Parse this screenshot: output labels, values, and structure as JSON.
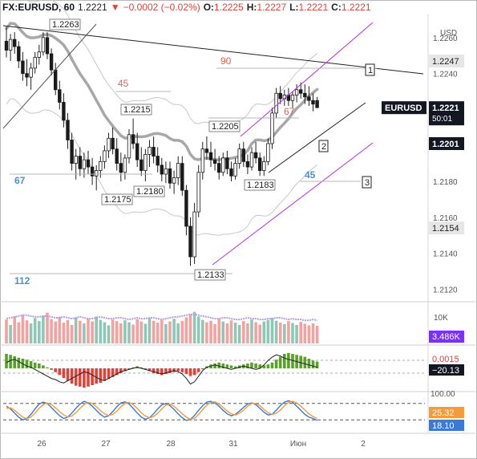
{
  "header": {
    "symbol": "FX:EURUSD, 60",
    "last": "1.2221",
    "change_icon": "triangle-down-icon",
    "change": "−0.0002 (−0.02%)",
    "o_label": "O:",
    "o": "1.2225",
    "h_label": "H:",
    "h": "1.2227",
    "l_label": "L:",
    "l": "1.2221",
    "c_label": "C:",
    "c": "1.2221"
  },
  "colors": {
    "up": "#5aa02c",
    "down": "#e0433a",
    "wick": "#222222",
    "channel": "#b92ee6",
    "ma": "#9e9e9e",
    "blue_label": "#4a90d9",
    "red_label": "#e0644f"
  },
  "chart_data": [
    {
      "type": "candlestick",
      "price_axis": {
        "unit": "USD",
        "ticks": [
          "1.2260",
          "1.2240",
          "1.2220",
          "1.2200",
          "1.2180",
          "1.2160",
          "1.2140",
          "1.2120"
        ],
        "ylim": [
          1.2113,
          1.2272
        ]
      },
      "time_axis": [
        "26",
        "27",
        "28",
        "31",
        "Июн",
        "2"
      ],
      "price_badges": [
        {
          "text": "1.2247",
          "value": 1.2247
        },
        {
          "text": "1.2221",
          "value": 1.2221,
          "symbol": "EURUSD",
          "countdown": "50:01"
        },
        {
          "text": "1.2201",
          "value": 1.2201
        },
        {
          "text": "1.2154",
          "value": 1.2154
        }
      ],
      "candles": [
        [
          1.2258,
          1.2266,
          1.2249,
          1.2253
        ],
        [
          1.2253,
          1.2262,
          1.2247,
          1.2259
        ],
        [
          1.2259,
          1.2263,
          1.2251,
          1.2255
        ],
        [
          1.2255,
          1.2258,
          1.2243,
          1.2247
        ],
        [
          1.2247,
          1.2252,
          1.2236,
          1.224
        ],
        [
          1.224,
          1.2248,
          1.2233,
          1.2238
        ],
        [
          1.2238,
          1.2246,
          1.2231,
          1.2243
        ],
        [
          1.2243,
          1.2252,
          1.224,
          1.2249
        ],
        [
          1.2249,
          1.2256,
          1.2245,
          1.2252
        ],
        [
          1.2252,
          1.2263,
          1.225,
          1.226
        ],
        [
          1.226,
          1.2263,
          1.2248,
          1.2251
        ],
        [
          1.2251,
          1.2254,
          1.2239,
          1.2242
        ],
        [
          1.2242,
          1.2246,
          1.2228,
          1.2231
        ],
        [
          1.2231,
          1.2236,
          1.222,
          1.2224
        ],
        [
          1.2224,
          1.2229,
          1.221,
          1.2214
        ],
        [
          1.2214,
          1.2218,
          1.2198,
          1.2203
        ],
        [
          1.2203,
          1.2207,
          1.2186,
          1.219
        ],
        [
          1.219,
          1.2198,
          1.2181,
          1.2194
        ],
        [
          1.2194,
          1.2199,
          1.2183,
          1.2187
        ],
        [
          1.2187,
          1.2196,
          1.2182,
          1.2192
        ],
        [
          1.2192,
          1.2197,
          1.2184,
          1.2188
        ],
        [
          1.2188,
          1.2193,
          1.2178,
          1.2183
        ],
        [
          1.2183,
          1.2189,
          1.2175,
          1.2186
        ],
        [
          1.2186,
          1.2194,
          1.2182,
          1.2191
        ],
        [
          1.2191,
          1.22,
          1.2187,
          1.2197
        ],
        [
          1.2197,
          1.2207,
          1.2193,
          1.2204
        ],
        [
          1.2204,
          1.221,
          1.2195,
          1.2198
        ],
        [
          1.2198,
          1.2204,
          1.2186,
          1.219
        ],
        [
          1.219,
          1.2196,
          1.218,
          1.2185
        ],
        [
          1.2185,
          1.2195,
          1.2181,
          1.2193
        ],
        [
          1.2193,
          1.2209,
          1.219,
          1.2206
        ],
        [
          1.2206,
          1.2215,
          1.2198,
          1.2201
        ],
        [
          1.2201,
          1.2207,
          1.2188,
          1.2192
        ],
        [
          1.2192,
          1.2199,
          1.2183,
          1.2186
        ],
        [
          1.2186,
          1.2198,
          1.218,
          1.2195
        ],
        [
          1.2195,
          1.2203,
          1.2188,
          1.2199
        ],
        [
          1.2199,
          1.2205,
          1.219,
          1.2194
        ],
        [
          1.2194,
          1.2199,
          1.2185,
          1.2189
        ],
        [
          1.2189,
          1.2193,
          1.218,
          1.2184
        ],
        [
          1.2184,
          1.2191,
          1.2179,
          1.2187
        ],
        [
          1.2187,
          1.2191,
          1.2176,
          1.2179
        ],
        [
          1.2179,
          1.2186,
          1.2173,
          1.2182
        ],
        [
          1.2182,
          1.2194,
          1.2178,
          1.219
        ],
        [
          1.219,
          1.2194,
          1.2172,
          1.2175
        ],
        [
          1.2175,
          1.2178,
          1.215,
          1.2155
        ],
        [
          1.2155,
          1.216,
          1.2133,
          1.2138
        ],
        [
          1.2138,
          1.2168,
          1.2134,
          1.2163
        ],
        [
          1.2163,
          1.2189,
          1.216,
          1.2185
        ],
        [
          1.2185,
          1.2202,
          1.2181,
          1.2198
        ],
        [
          1.2198,
          1.2205,
          1.2192,
          1.2196
        ],
        [
          1.2196,
          1.2202,
          1.2188,
          1.2192
        ],
        [
          1.2192,
          1.2198,
          1.2186,
          1.219
        ],
        [
          1.219,
          1.2194,
          1.2181,
          1.2185
        ],
        [
          1.2185,
          1.2196,
          1.2183,
          1.2193
        ],
        [
          1.2193,
          1.2197,
          1.2184,
          1.2187
        ],
        [
          1.2187,
          1.2191,
          1.218,
          1.2183
        ],
        [
          1.2183,
          1.2193,
          1.2181,
          1.219
        ],
        [
          1.219,
          1.2201,
          1.2187,
          1.2198
        ],
        [
          1.2198,
          1.2202,
          1.2188,
          1.2191
        ],
        [
          1.2191,
          1.2195,
          1.2184,
          1.2188
        ],
        [
          1.2188,
          1.2199,
          1.2186,
          1.2196
        ],
        [
          1.2196,
          1.2202,
          1.219,
          1.2193
        ],
        [
          1.2193,
          1.2196,
          1.2183,
          1.2186
        ],
        [
          1.2186,
          1.2194,
          1.2183,
          1.2191
        ],
        [
          1.2191,
          1.2204,
          1.2189,
          1.2201
        ],
        [
          1.2201,
          1.2221,
          1.2198,
          1.2218
        ],
        [
          1.2218,
          1.2232,
          1.2215,
          1.2229
        ],
        [
          1.2229,
          1.2233,
          1.2223,
          1.2226
        ],
        [
          1.2226,
          1.2231,
          1.2222,
          1.2228
        ],
        [
          1.2228,
          1.2232,
          1.2222,
          1.2225
        ],
        [
          1.2225,
          1.223,
          1.2221,
          1.2228
        ],
        [
          1.2228,
          1.2234,
          1.2224,
          1.2231
        ],
        [
          1.2231,
          1.2235,
          1.2226,
          1.2229
        ],
        [
          1.2229,
          1.2234,
          1.2223,
          1.2227
        ],
        [
          1.2227,
          1.2233,
          1.2222,
          1.2225
        ],
        [
          1.2225,
          1.2229,
          1.2219,
          1.2223
        ],
        [
          1.2225,
          1.2227,
          1.2221,
          1.2221
        ]
      ],
      "ma_labels": [
        {
          "text": "90",
          "color": "red"
        },
        {
          "text": "45",
          "color": "red"
        },
        {
          "text": "67",
          "color": "blue"
        },
        {
          "text": "112",
          "color": "blue"
        },
        {
          "text": "67",
          "color": "red"
        },
        {
          "text": "45",
          "color": "blue"
        }
      ],
      "price_labels": [
        "1.2263",
        "1.2215",
        "1.2205",
        "1.2175",
        "1.2180",
        "1.2183",
        "1.2133"
      ],
      "wave_labels": [
        "1",
        "2",
        "3"
      ]
    },
    {
      "type": "bar",
      "name": "volume",
      "ticks": [
        "10K"
      ],
      "badge": "3.486K",
      "values": [
        62,
        48,
        70,
        55,
        74,
        60,
        52,
        66,
        58,
        71,
        80,
        63,
        57,
        69,
        54,
        61,
        48,
        67,
        59,
        52,
        64,
        57,
        70,
        61,
        55,
        47,
        62,
        58,
        52,
        60,
        55,
        49,
        63,
        57,
        51,
        66,
        59,
        54,
        61,
        50,
        57,
        64,
        52,
        58,
        68,
        75,
        82,
        70,
        61,
        55,
        59,
        50,
        64,
        57,
        52,
        60,
        54,
        48,
        58,
        52,
        62,
        55,
        49,
        57,
        61,
        66,
        59,
        54,
        50,
        58,
        53,
        48,
        56,
        51,
        47,
        52,
        46
      ],
      "ma": [
        2.9,
        3.0,
        3.1,
        3.2,
        3.3,
        3.3,
        3.2,
        3.1,
        3.1,
        3.2,
        3.2,
        3.1,
        3.0,
        3.0,
        3.1,
        3.0,
        2.9,
        3.0,
        3.1,
        3.0,
        2.9,
        2.9,
        3.0,
        3.1,
        3.0,
        2.9,
        2.9,
        3.0,
        3.0,
        2.9,
        2.8,
        2.9,
        3.0,
        2.9,
        2.9,
        3.0,
        3.0,
        2.9,
        2.8,
        2.9,
        3.0,
        3.1,
        3.1,
        3.2,
        3.3,
        3.4,
        3.4,
        3.3,
        3.2,
        3.1,
        3.0,
        2.9,
        2.9,
        3.0,
        3.0,
        2.9,
        2.8,
        2.8,
        2.9,
        3.0,
        2.9,
        2.9,
        2.8,
        2.8,
        2.9,
        2.9,
        3.0,
        3.0,
        2.9,
        2.8,
        2.9,
        2.8,
        2.8,
        2.7,
        2.7,
        2.8,
        2.7
      ]
    },
    {
      "type": "bar",
      "name": "histogram oscillator",
      "badges": [
        "0.0015",
        "−20.13"
      ],
      "values": [
        30,
        28,
        25,
        22,
        20,
        18,
        15,
        12,
        10,
        6,
        2,
        -3,
        -8,
        -14,
        -20,
        -26,
        -32,
        -36,
        -38,
        -40,
        -38,
        -35,
        -32,
        -30,
        -26,
        -22,
        -18,
        -14,
        -10,
        -6,
        -2,
        2,
        4,
        2,
        -2,
        -6,
        -10,
        -12,
        -14,
        -12,
        -10,
        -8,
        -6,
        -8,
        -12,
        -16,
        -14,
        -8,
        -2,
        4,
        8,
        10,
        12,
        10,
        8,
        6,
        4,
        6,
        8,
        10,
        12,
        10,
        8,
        6,
        8,
        12,
        18,
        24,
        30,
        32,
        30,
        28,
        26,
        24,
        20,
        16,
        14
      ],
      "line": [
        10,
        14,
        16,
        12,
        8,
        4,
        2,
        -2,
        -6,
        -10,
        -14,
        -18,
        -20,
        -24,
        -26,
        -22,
        -18,
        -14,
        -10,
        -6,
        -8,
        -12,
        -16,
        -20,
        -22,
        -18,
        -14,
        -10,
        -6,
        -4,
        -2,
        0,
        2,
        0,
        -2,
        -4,
        -6,
        -8,
        -10,
        -8,
        -6,
        -4,
        -6,
        -10,
        -18,
        -28,
        -24,
        -14,
        -4,
        2,
        4,
        6,
        4,
        2,
        0,
        -2,
        0,
        2,
        4,
        2,
        0,
        -2,
        0,
        6,
        14,
        20,
        24,
        22,
        18,
        16,
        14,
        12,
        10,
        8,
        6,
        4,
        2
      ]
    },
    {
      "type": "line",
      "name": "stochastic",
      "ticks": [
        "100.00"
      ],
      "badges": [
        "25.32",
        "18.10"
      ],
      "series": [
        {
          "values": [
            70,
            60,
            45,
            30,
            20,
            25,
            40,
            60,
            78,
            85,
            80,
            65,
            50,
            35,
            25,
            30,
            45,
            62,
            78,
            88,
            82,
            70,
            55,
            40,
            30,
            35,
            50,
            68,
            82,
            86,
            78,
            62,
            45,
            30,
            22,
            28,
            42,
            60,
            75,
            80,
            72,
            58,
            42,
            28,
            18,
            22,
            36,
            55,
            72,
            85,
            88,
            82,
            70,
            55,
            42,
            35,
            40,
            52,
            66,
            78,
            82,
            76,
            62,
            48,
            38,
            40,
            55,
            72,
            85,
            90,
            84,
            70,
            55,
            40,
            30,
            25,
            18
          ]
        },
        {
          "values": [
            62,
            64,
            55,
            42,
            30,
            24,
            30,
            45,
            62,
            76,
            82,
            76,
            64,
            50,
            38,
            30,
            34,
            46,
            62,
            76,
            84,
            80,
            68,
            54,
            42,
            36,
            40,
            52,
            68,
            80,
            84,
            76,
            62,
            46,
            34,
            28,
            32,
            44,
            60,
            74,
            78,
            70,
            56,
            42,
            30,
            22,
            26,
            40,
            58,
            74,
            84,
            86,
            78,
            66,
            52,
            42,
            38,
            44,
            56,
            70,
            80,
            80,
            72,
            58,
            46,
            40,
            44,
            56,
            72,
            84,
            88,
            82,
            70,
            56,
            42,
            32,
            25
          ]
        }
      ]
    }
  ]
}
